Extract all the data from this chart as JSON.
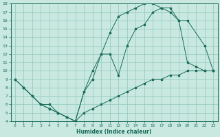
{
  "xlabel": "Humidex (Indice chaleur)",
  "ylabel": "",
  "bg_color": "#c8e8e0",
  "grid_color": "#90c8be",
  "line_color": "#1a6b5a",
  "xlim": [
    -0.5,
    23.5
  ],
  "ylim": [
    4,
    18
  ],
  "xticks": [
    0,
    1,
    2,
    3,
    4,
    5,
    6,
    7,
    8,
    9,
    10,
    11,
    12,
    13,
    14,
    15,
    16,
    17,
    18,
    19,
    20,
    21,
    22,
    23
  ],
  "yticks": [
    4,
    5,
    6,
    7,
    8,
    9,
    10,
    11,
    12,
    13,
    14,
    15,
    16,
    17,
    18
  ],
  "line1_x": [
    0,
    1,
    2,
    3,
    4,
    5,
    6,
    7,
    8,
    9,
    10,
    11,
    12,
    13,
    14,
    15,
    16,
    17,
    18,
    19,
    20,
    21,
    22,
    23
  ],
  "line1_y": [
    9,
    8,
    7,
    6,
    6,
    5,
    4.5,
    4,
    7.5,
    10,
    12,
    14.5,
    16.5,
    17,
    17.5,
    18,
    18,
    17.5,
    17,
    16,
    11,
    10.5,
    10,
    10
  ],
  "line2_x": [
    1,
    3,
    4,
    5,
    6,
    7,
    8,
    9,
    10,
    11,
    12,
    13,
    14,
    15,
    16,
    17,
    18,
    19,
    20,
    22,
    23
  ],
  "line2_y": [
    8,
    6,
    5.5,
    5,
    4.5,
    4,
    7.5,
    9,
    12,
    12,
    9.5,
    13,
    15,
    15.5,
    17,
    17.5,
    17.5,
    16,
    16,
    13,
    10
  ],
  "line3_x": [
    0,
    1,
    2,
    3,
    4,
    5,
    6,
    7,
    8,
    9,
    10,
    11,
    12,
    13,
    14,
    15,
    16,
    17,
    18,
    19,
    20,
    21,
    22,
    23
  ],
  "line3_y": [
    9,
    8,
    7,
    6,
    5.5,
    5,
    4.5,
    4,
    5,
    5.5,
    6,
    6.5,
    7,
    7.5,
    8,
    8.5,
    9,
    9,
    9.5,
    9.5,
    10,
    10,
    10,
    10
  ]
}
